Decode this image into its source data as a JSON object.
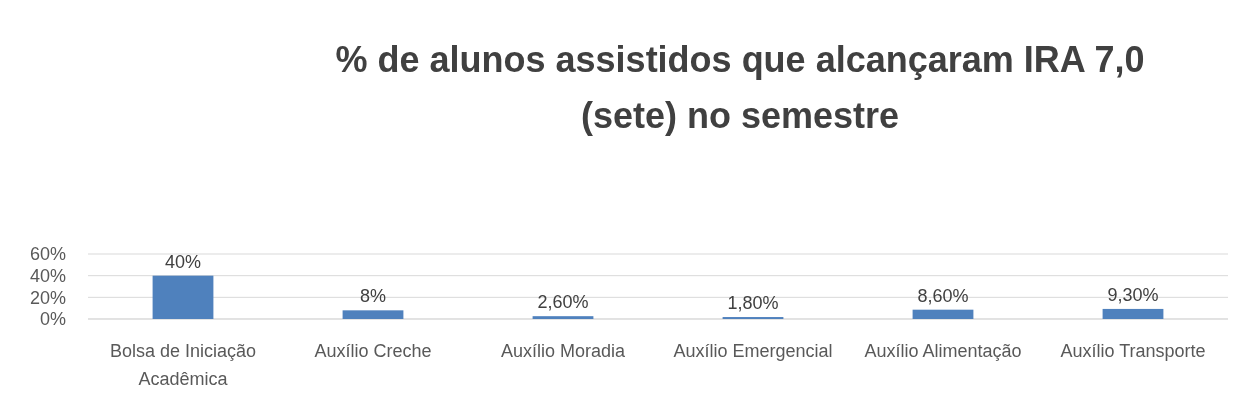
{
  "chart_data": {
    "type": "bar",
    "title": "% de alunos assistidos que alcançaram IRA 7,0 (sete) no semestre",
    "categories": [
      "Bolsa de Iniciação Acadêmica",
      "Auxílio Creche",
      "Auxílio Moradia",
      "Auxílio Emergencial",
      "Auxílio Alimentação",
      "Auxílio Transporte"
    ],
    "values": [
      40,
      8,
      2.6,
      1.8,
      8.6,
      9.3
    ],
    "value_labels": [
      "40%",
      "8%",
      "2,60%",
      "1,80%",
      "8,60%",
      "9,30%"
    ],
    "color": "#4f81bd",
    "ylim": [
      0,
      60
    ],
    "yticks": [
      {
        "value": 0,
        "label": "0%"
      },
      {
        "value": 20,
        "label": "20%"
      },
      {
        "value": 40,
        "label": "40%"
      },
      {
        "value": 60,
        "label": "60%"
      }
    ],
    "grid": "y"
  }
}
